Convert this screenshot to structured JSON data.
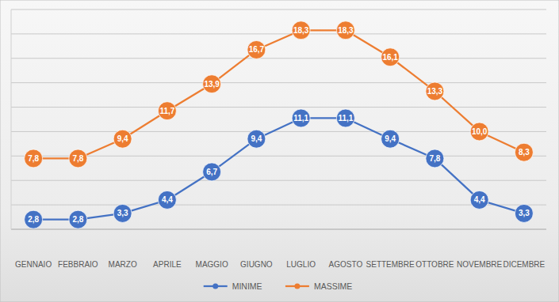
{
  "chart_data": {
    "type": "line",
    "categories": [
      "GENNAIO",
      "FEBBRAIO",
      "MARZO",
      "APRILE",
      "MAGGIO",
      "GIUGNO",
      "LUGLIO",
      "AGOSTO",
      "SETTEMBRE",
      "OTTOBRE",
      "NOVEMBRE",
      "DICEMBRE"
    ],
    "series": [
      {
        "name": "MINIME",
        "color": "#4472c4",
        "marker": "circle",
        "values": [
          2.8,
          2.8,
          3.3,
          4.4,
          6.7,
          9.4,
          11.1,
          11.1,
          9.4,
          7.8,
          4.4,
          3.3
        ],
        "value_labels": [
          "2,8",
          "2,8",
          "3,3",
          "4,4",
          "6,7",
          "9,4",
          "11,1",
          "11,1",
          "9,4",
          "7,8",
          "4,4",
          "3,3"
        ]
      },
      {
        "name": "MASSIME",
        "color": "#ed7d31",
        "marker": "circle",
        "values": [
          7.8,
          7.8,
          9.4,
          11.7,
          13.9,
          16.7,
          18.3,
          18.3,
          16.1,
          13.3,
          10.0,
          8.3
        ],
        "value_labels": [
          "7,8",
          "7,8",
          "9,4",
          "11,7",
          "13,9",
          "16,7",
          "18,3",
          "18,3",
          "16,1",
          "13,3",
          "10,0",
          "8,3"
        ]
      }
    ],
    "ylim": [
      2,
      20
    ],
    "yticks": [
      2,
      4,
      6,
      8,
      10,
      12,
      14,
      16,
      18,
      20
    ],
    "grid": true,
    "legend": "bottom",
    "data_labels": true,
    "tick_labels": "x"
  }
}
